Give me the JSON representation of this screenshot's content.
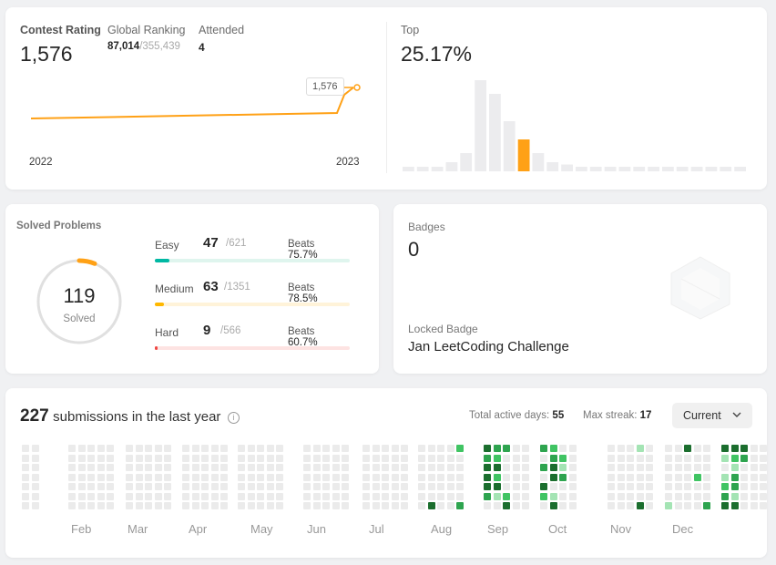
{
  "contest": {
    "rating_label": "Contest Rating",
    "rating_value": "1,576",
    "global_label": "Global Ranking",
    "global_rank": "87,014",
    "global_total": "/355,439",
    "attended_label": "Attended",
    "attended_value": "4",
    "tooltip_value": "1,576",
    "x_ticks": [
      "2022",
      "2023"
    ],
    "top_label": "Top",
    "top_value": "25.17%",
    "line_color": "#ffa116",
    "highlight_color": "#ffa116",
    "histogram": {
      "type": "bar",
      "values": [
        1,
        1,
        1,
        2,
        4,
        20,
        17,
        11,
        7,
        4,
        2,
        1.5,
        1,
        1,
        1,
        1,
        1,
        1,
        1,
        1,
        1,
        1,
        1,
        1
      ],
      "highlight_index": 8
    }
  },
  "solved": {
    "title": "Solved Problems",
    "total": "119",
    "total_label": "Solved",
    "beats_label": "Beats",
    "difficulties": [
      {
        "name": "Easy",
        "count": "47",
        "total": "/621",
        "beats": "75.7%",
        "fraction": 0.0757,
        "color": "#00b8a3",
        "track": "#dff5ee"
      },
      {
        "name": "Medium",
        "count": "63",
        "total": "/1351",
        "beats": "78.5%",
        "fraction": 0.0466,
        "color": "#ffb800",
        "track": "#fff3d9"
      },
      {
        "name": "Hard",
        "count": "9",
        "total": "/566",
        "beats": "60.7%",
        "fraction": 0.0159,
        "color": "#ef4743",
        "track": "#fde3e2"
      }
    ]
  },
  "badges": {
    "title": "Badges",
    "count": "0",
    "locked_label": "Locked Badge",
    "locked_name": "Jan LeetCoding Challenge",
    "icon": "hexagon-badge-icon"
  },
  "submissions": {
    "count": "227",
    "text": "submissions in the last year",
    "info_icon": "info-icon",
    "active_label": "Total active days:",
    "active_value": "55",
    "streak_label": "Max streak:",
    "streak_value": "17",
    "selector": "Current",
    "months": [
      "Feb",
      "Mar",
      "Apr",
      "May",
      "Jun",
      "Jul",
      "Aug",
      "Sep",
      "Oct",
      "Nov",
      "Dec"
    ],
    "colors": [
      "#ebebeb",
      "#a4e4b4",
      "#40c463",
      "#2ea44f",
      "#1b6e2e"
    ]
  }
}
